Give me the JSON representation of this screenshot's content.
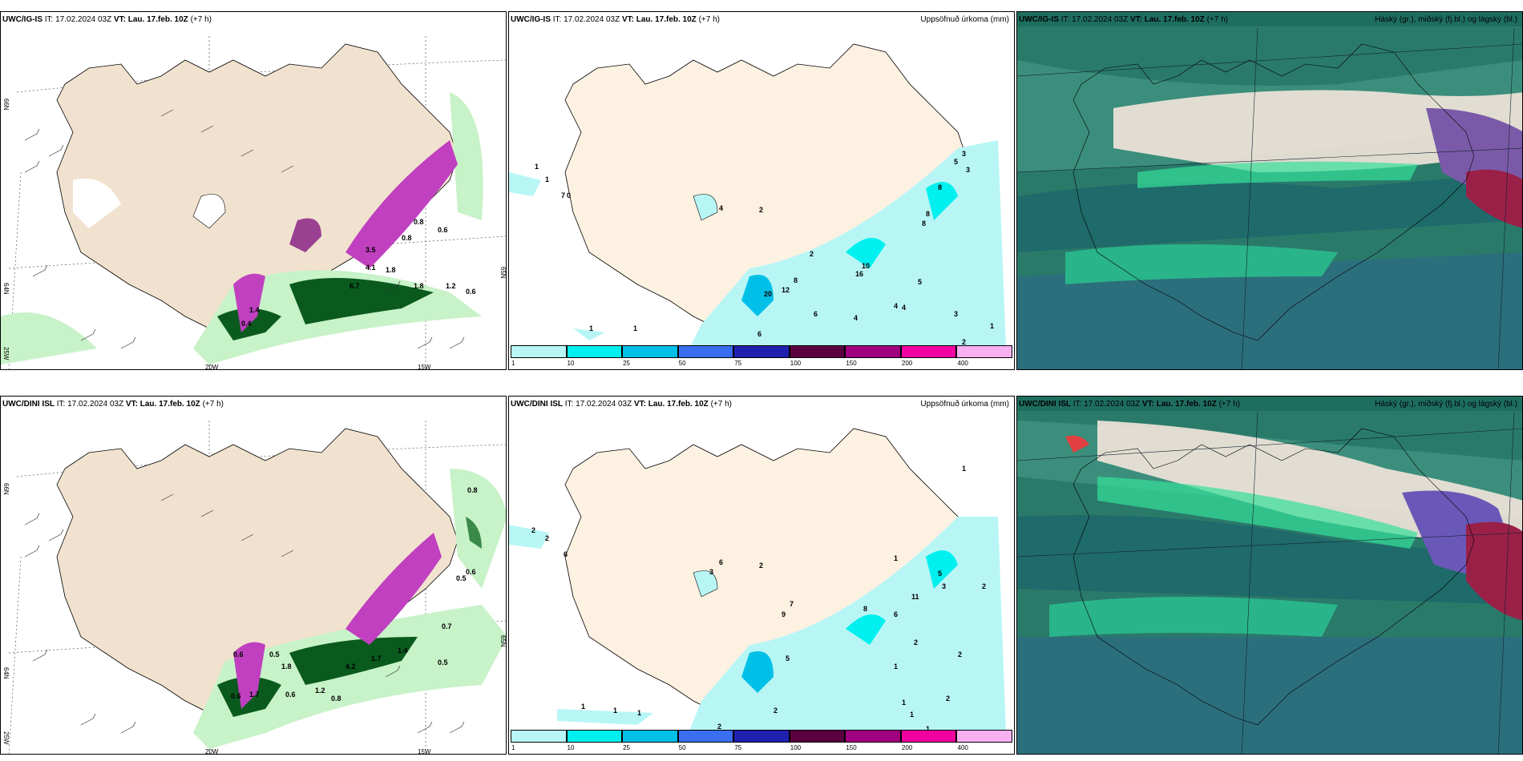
{
  "panels": {
    "top_left": {
      "model": "UWC/IG-IS",
      "it_label": "IT:",
      "it_value": "17.02.2024 03Z",
      "vt_label": "VT:",
      "vt_value": "Lau. 17.feb. 10Z",
      "lead": "(+7 h)",
      "right_title": "",
      "values": [
        "0.4",
        "1.4",
        "4.1",
        "1.8",
        "1.8",
        "1.2",
        "0.6",
        "6.7",
        "3.5",
        "0.8",
        "0.8",
        "0.6"
      ],
      "lat_labels": [
        "66N",
        "64N",
        "25W",
        "20W",
        "15W",
        "65N"
      ]
    },
    "top_mid": {
      "model": "UWC/IG-IS",
      "it_label": "IT:",
      "it_value": "17.02.2024 03Z",
      "vt_label": "VT:",
      "vt_value": "Lau. 17.feb. 10Z",
      "lead": "(+7 h)",
      "right_title": "Uppsöfnuð úrkoma (mm)",
      "values": [
        "1",
        "1",
        "7",
        "0",
        "4",
        "2",
        "2",
        "8",
        "12",
        "20",
        "6",
        "6",
        "10",
        "16",
        "4",
        "4",
        "4",
        "5",
        "3",
        "1",
        "2",
        "1",
        "1",
        "8",
        "8",
        "8",
        "5",
        "3",
        "3"
      ]
    },
    "top_right": {
      "model": "UWC/IG-IS",
      "it_label": "IT:",
      "it_value": "17.02.2024 03Z",
      "vt_label": "VT:",
      "vt_value": "Lau. 17.feb. 10Z",
      "lead": "(+7 h)",
      "right_title": "Háský (gr.), miðský (fj.bl.) og lágský (bl.)"
    },
    "bottom_left": {
      "model": "UWC/DINI ISL",
      "it_label": "IT:",
      "it_value": "17.02.2024 03Z",
      "vt_label": "VT:",
      "vt_value": "Lau. 17.feb. 10Z",
      "lead": "(+7 h)",
      "right_title": "",
      "values": [
        "0.8",
        "0.6",
        "0.5",
        "0.7",
        "0.5",
        "1.4",
        "1.7",
        "4.2",
        "0.8",
        "1.2",
        "0.6",
        "1.7",
        "1.8",
        "0.6",
        "0.5",
        "0.6"
      ],
      "lat_labels": [
        "66N",
        "64N",
        "25W",
        "20W",
        "15W",
        "65N"
      ]
    },
    "bottom_mid": {
      "model": "UWC/DINI ISL",
      "it_label": "IT:",
      "it_value": "17.02.2024 03Z",
      "vt_label": "VT:",
      "vt_value": "Lau. 17.feb. 10Z",
      "lead": "(+7 h)",
      "right_title": "Uppsöfnuð úrkoma (mm)",
      "values": [
        "2",
        "2",
        "6",
        "3",
        "6",
        "2",
        "1",
        "1",
        "1",
        "7",
        "9",
        "5",
        "2",
        "2",
        "8",
        "6",
        "1",
        "11",
        "5",
        "3",
        "1",
        "2",
        "2",
        "2",
        "1",
        "1",
        "2",
        "1",
        "1"
      ]
    },
    "bottom_right": {
      "model": "UWC/DINI ISL",
      "it_label": "IT:",
      "it_value": "17.02.2024 03Z",
      "vt_label": "VT:",
      "vt_value": "Lau. 17.feb. 10Z",
      "lead": "(+7 h)",
      "right_title": "Háský (gr.), miðský (fj.bl.) og lágský (bl.)"
    }
  },
  "colorbar": {
    "ticks": [
      "1",
      "10",
      "25",
      "50",
      "75",
      "100",
      "150",
      "200",
      "400"
    ],
    "colors": [
      "#b8f6f6",
      "#00f0f0",
      "#00c0e8",
      "#3a6ef0",
      "#2020b0",
      "#5a0040",
      "#a00080",
      "#f000a0",
      "#f8b0f0"
    ]
  },
  "colors": {
    "land": "#f1e2cf",
    "rain_land": "#fdf1e2",
    "green_light": "#c8f2c8",
    "green_dark": "#0a5a1e",
    "magenta": "#c040c0",
    "cloud_base": "#1e6e60"
  }
}
